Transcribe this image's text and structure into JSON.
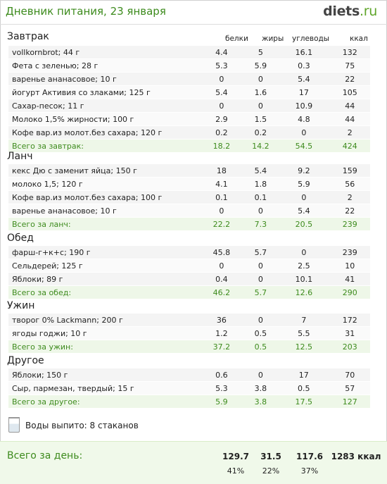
{
  "header": {
    "title": "Дневник питания, 23 января",
    "logo_main": "diets",
    "logo_dot": ".",
    "logo_tld": "ru"
  },
  "columns": {
    "protein": "белки",
    "fat": "жиры",
    "carbs": "углеводы",
    "kcal": "ккал"
  },
  "meals": [
    {
      "title": "Завтрак",
      "items": [
        [
          "vollkornbrot; 44 г",
          "4.4",
          "5",
          "16.1",
          "132"
        ],
        [
          "Фета с зеленью; 28 г",
          "5.3",
          "5.9",
          "0.3",
          "75"
        ],
        [
          "варенье ананасовое; 10 г",
          "0",
          "0",
          "5.4",
          "22"
        ],
        [
          "йогурт Активия со злаками; 125 г",
          "5.4",
          "1.6",
          "17",
          "105"
        ],
        [
          "Сахар-песок; 11 г",
          "0",
          "0",
          "10.9",
          "44"
        ],
        [
          "Молоко 1,5% жирности; 100 г",
          "2.9",
          "1.5",
          "4.8",
          "44"
        ],
        [
          "Кофе вар.из молот.без сахара; 120 г",
          "0.2",
          "0.2",
          "0",
          "2"
        ]
      ],
      "total": [
        "Всего за завтрак:",
        "18.2",
        "14.2",
        "54.5",
        "424"
      ]
    },
    {
      "title": "Ланч",
      "items": [
        [
          "кекс Дю с заменит яйца; 150 г",
          "18",
          "5.4",
          "9.2",
          "159"
        ],
        [
          "молоко 1,5; 120 г",
          "4.1",
          "1.8",
          "5.9",
          "56"
        ],
        [
          "Кофе вар.из молот.без сахара; 100 г",
          "0.1",
          "0.1",
          "0",
          "2"
        ],
        [
          "варенье ананасовое; 10 г",
          "0",
          "0",
          "5.4",
          "22"
        ]
      ],
      "total": [
        "Всего за ланч:",
        "22.2",
        "7.3",
        "20.5",
        "239"
      ]
    },
    {
      "title": "Обед",
      "items": [
        [
          "фарш-г+к+с; 190 г",
          "45.8",
          "5.7",
          "0",
          "239"
        ],
        [
          "Сельдерей; 125 г",
          "0",
          "0",
          "2.5",
          "10"
        ],
        [
          "Яблоки; 89 г",
          "0.4",
          "0",
          "10.1",
          "41"
        ]
      ],
      "total": [
        "Всего за обед:",
        "46.2",
        "5.7",
        "12.6",
        "290"
      ]
    },
    {
      "title": "Ужин",
      "items": [
        [
          "творог 0% Lackmann; 200 г",
          "36",
          "0",
          "7",
          "172"
        ],
        [
          "ягоды годжи; 10 г",
          "1.2",
          "0.5",
          "5.5",
          "31"
        ]
      ],
      "total": [
        "Всего за ужин:",
        "37.2",
        "0.5",
        "12.5",
        "203"
      ]
    },
    {
      "title": "Другое",
      "items": [
        [
          "Яблоки; 150 г",
          "0.6",
          "0",
          "17",
          "70"
        ],
        [
          "Сыр, пармезан, твердый; 15 г",
          "5.3",
          "3.8",
          "0.5",
          "57"
        ]
      ],
      "total": [
        "Всего за другое:",
        "5.9",
        "3.8",
        "17.5",
        "127"
      ]
    }
  ],
  "water": {
    "icon": "water-glass-icon",
    "text": "Воды выпито: 8 стаканов"
  },
  "day_total": {
    "label": "Всего за день:",
    "protein": "129.7",
    "fat": "31.5",
    "carbs": "117.6",
    "kcal": "1283 ккал",
    "protein_pct": "41%",
    "fat_pct": "22%",
    "carbs_pct": "37%"
  },
  "colors": {
    "accent": "#3d8b1d",
    "total_row_bg": "#eef7e8"
  }
}
